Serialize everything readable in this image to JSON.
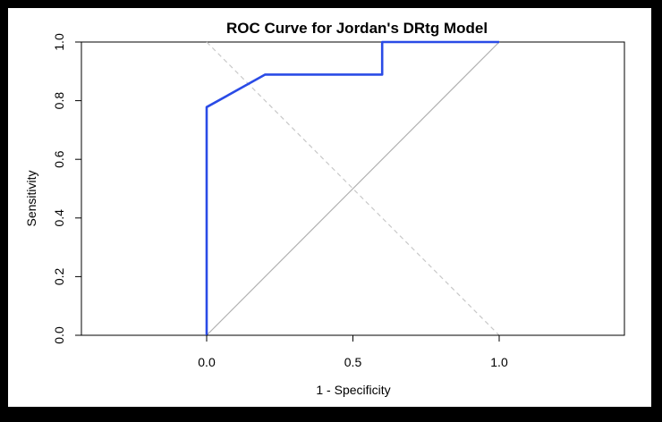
{
  "chart_data": {
    "type": "line",
    "title": "ROC Curve for Jordan's DRtg Model",
    "xlabel": "1 - Specificity",
    "ylabel": "Sensitivity",
    "xlim": [
      -0.5,
      1.43
    ],
    "ylim": [
      0,
      1
    ],
    "x_ticks": [
      "0.0",
      "0.5",
      "1.0"
    ],
    "y_ticks": [
      "0.0",
      "0.2",
      "0.4",
      "0.6",
      "0.8",
      "1.0"
    ],
    "grid": false,
    "series": [
      {
        "color": "#2a4be6",
        "x": [
          0,
          0,
          0.2,
          0.6,
          0.6,
          1.0
        ],
        "y": [
          0,
          0.778,
          0.889,
          0.889,
          1.0,
          1.0
        ]
      }
    ],
    "reference_lines": [
      {
        "style": "solid",
        "color": "#b0b0b0",
        "x": [
          0,
          1
        ],
        "y": [
          0,
          1
        ]
      },
      {
        "style": "dashed",
        "color": "#c8c8c8",
        "x": [
          0,
          1
        ],
        "y": [
          1,
          0
        ]
      }
    ]
  }
}
